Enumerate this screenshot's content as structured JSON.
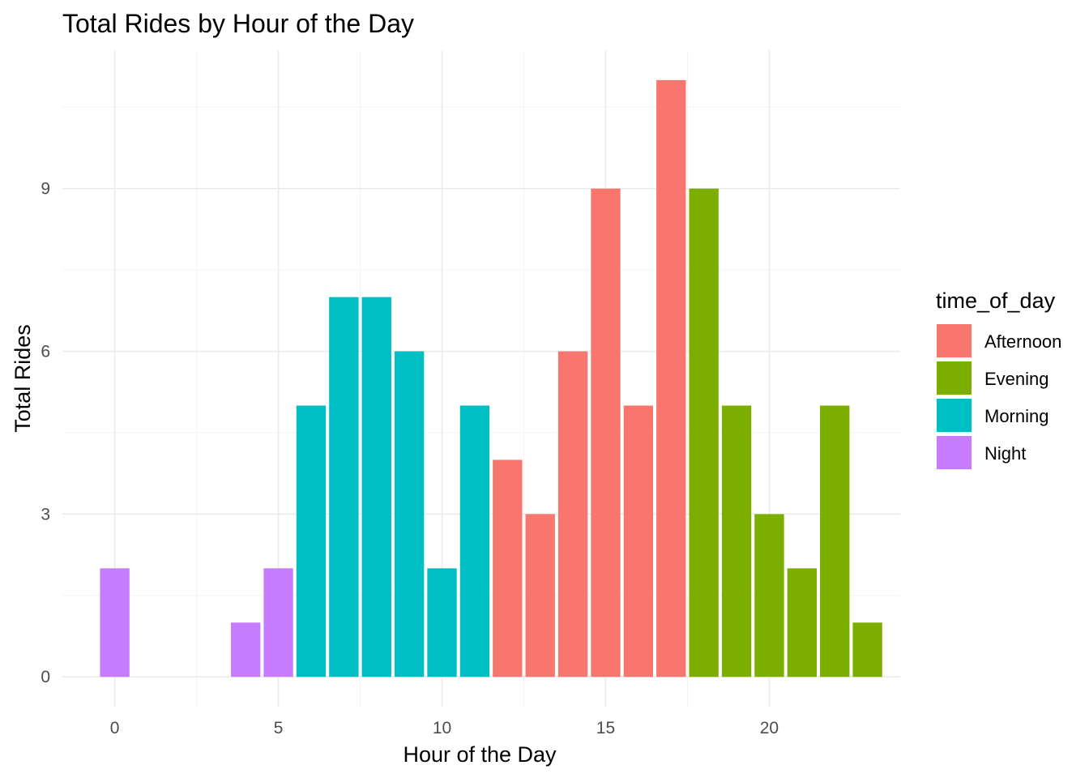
{
  "chart_data": {
    "type": "bar",
    "title": "Total Rides by Hour of the Day",
    "xlabel": "Hour of the Day",
    "ylabel": "Total Rides",
    "x_ticks": [
      0,
      5,
      10,
      15,
      20
    ],
    "y_ticks": [
      0,
      3,
      6,
      9
    ],
    "xlim": [
      -1.6,
      24.0
    ],
    "ylim": [
      -0.55,
      11.55
    ],
    "grid": true,
    "legend": {
      "title": "time_of_day",
      "position": "right",
      "entries": [
        {
          "name": "Afternoon",
          "color": "#F8766D"
        },
        {
          "name": "Evening",
          "color": "#7CAE00"
        },
        {
          "name": "Morning",
          "color": "#00BFC4"
        },
        {
          "name": "Night",
          "color": "#C77CFF"
        }
      ]
    },
    "bars": [
      {
        "hour": 0,
        "value": 2,
        "group": "Night"
      },
      {
        "hour": 4,
        "value": 1,
        "group": "Night"
      },
      {
        "hour": 5,
        "value": 2,
        "group": "Night"
      },
      {
        "hour": 6,
        "value": 5,
        "group": "Morning"
      },
      {
        "hour": 7,
        "value": 7,
        "group": "Morning"
      },
      {
        "hour": 8,
        "value": 7,
        "group": "Morning"
      },
      {
        "hour": 9,
        "value": 6,
        "group": "Morning"
      },
      {
        "hour": 10,
        "value": 2,
        "group": "Morning"
      },
      {
        "hour": 11,
        "value": 5,
        "group": "Morning"
      },
      {
        "hour": 12,
        "value": 4,
        "group": "Afternoon"
      },
      {
        "hour": 13,
        "value": 3,
        "group": "Afternoon"
      },
      {
        "hour": 14,
        "value": 6,
        "group": "Afternoon"
      },
      {
        "hour": 15,
        "value": 9,
        "group": "Afternoon"
      },
      {
        "hour": 16,
        "value": 5,
        "group": "Afternoon"
      },
      {
        "hour": 17,
        "value": 11,
        "group": "Afternoon"
      },
      {
        "hour": 18,
        "value": 9,
        "group": "Evening"
      },
      {
        "hour": 19,
        "value": 5,
        "group": "Evening"
      },
      {
        "hour": 20,
        "value": 3,
        "group": "Evening"
      },
      {
        "hour": 21,
        "value": 2,
        "group": "Evening"
      },
      {
        "hour": 22,
        "value": 5,
        "group": "Evening"
      },
      {
        "hour": 23,
        "value": 1,
        "group": "Evening"
      }
    ]
  }
}
